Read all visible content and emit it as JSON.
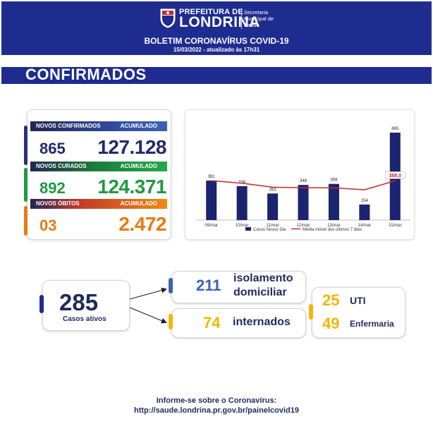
{
  "header": {
    "logo_top": "PREFEITURA DE",
    "logo_main": "LONDRINA",
    "logo_sec_1": "Secretaria",
    "logo_sec_2": "Municipal de",
    "logo_sec_3": "Saúde",
    "title": "BOLETIM CORONAVÍRUS COVID-19",
    "date": "15/03/2022 - atualizado às 17h31"
  },
  "section": {
    "title": "CONFIRMADOS"
  },
  "stats": {
    "confirmados": {
      "label": "NOVOS CONFIRMADOS",
      "acc_label": "ACUMULADO",
      "new": "865",
      "acc": "127.128",
      "color": "#2a3b8f"
    },
    "curados": {
      "label": "NOVOS CURADOS",
      "acc_label": "ACUMULADO",
      "new": "892",
      "acc": "124.371",
      "color": "#1f9a3f"
    },
    "obitos": {
      "label": "NOVOS ÓBITOS",
      "acc_label": "ACUMULADO",
      "new": "03",
      "acc": "2.472",
      "color": "#ea7a12"
    }
  },
  "chart_data": {
    "type": "bar",
    "categories": [
      "09/mar",
      "10/mar",
      "11/mar",
      "12/mar",
      "13/mar",
      "14/mar",
      "15/mar"
    ],
    "series": [
      {
        "name": "Casos Novos Dia",
        "type": "bar",
        "color": "#1a2470",
        "values": [
          391,
          336,
          263,
          348,
          358,
          154,
          865
        ]
      },
      {
        "name": "Média móvel dos últimos 7 dias",
        "type": "line",
        "color": "#c8282d",
        "values": [
          390,
          365,
          325,
          320,
          318,
          300,
          388
        ]
      }
    ],
    "annotation": "388,0",
    "ylim": [
      0,
      900
    ]
  },
  "ativos": {
    "value": "285",
    "label": "Casos ativos"
  },
  "isolamento": {
    "value": "211",
    "label_1": "isolamento",
    "label_2": "domiciliar"
  },
  "internados": {
    "value": "74",
    "label": "internados"
  },
  "uti": {
    "value": "25",
    "label": "UTI"
  },
  "enfermaria": {
    "value": "49",
    "label": "Enfermaria"
  },
  "footer": {
    "line1": "Informe-se sobre o Coronavírus:",
    "line2": "http://saude.londrina.pr.gov.br/painelcovid19"
  },
  "colors": {
    "navy": "#1f2c8f",
    "yellow": "#f2b705",
    "blue_mid": "#3b62b5"
  }
}
